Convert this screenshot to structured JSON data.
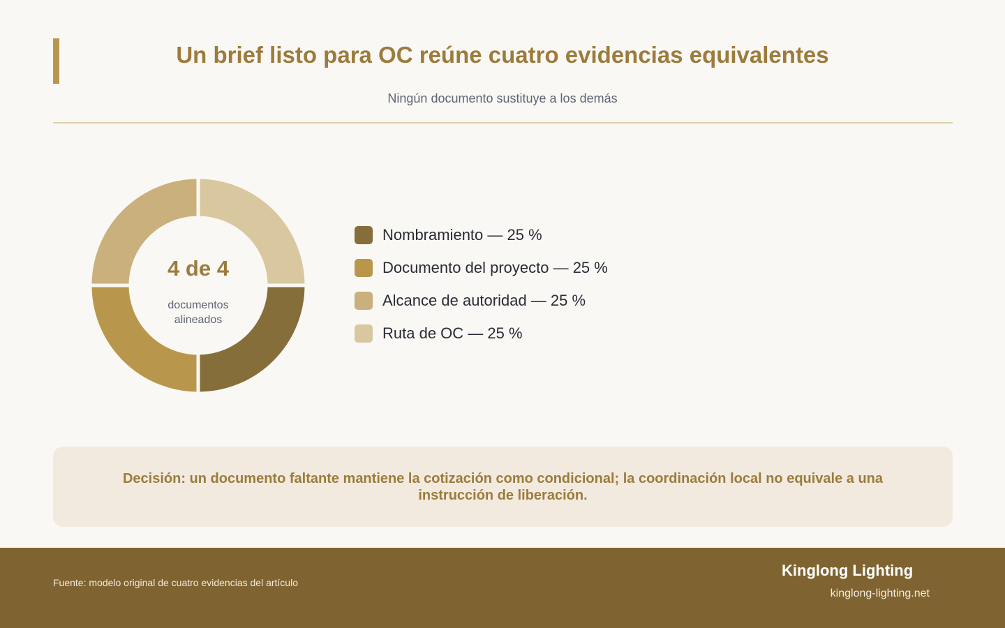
{
  "header": {
    "title": "Un brief listo para OC reúne cuatro evidencias equivalentes",
    "subtitle": "Ningún documento sustituye a los demás"
  },
  "chart_data": {
    "type": "pie",
    "variant": "donut",
    "categories": [
      "Nombramiento",
      "Documento del proyecto",
      "Alcance de autoridad",
      "Ruta de OC"
    ],
    "values": [
      25,
      25,
      25,
      25
    ],
    "legend_labels": [
      "Nombramiento — 25 %",
      "Documento del proyecto — 25 %",
      "Alcance de autoridad — 25 %",
      "Ruta de OC — 25 %"
    ],
    "colors": [
      "#866e3b",
      "#b8974c",
      "#c9b07c",
      "#d9c79f"
    ],
    "center_value": "4 de 4",
    "center_caption_line1": "documentos",
    "center_caption_line2": "alineados",
    "legend_position": "right"
  },
  "callout": {
    "text": "Decisión: un documento faltante mantiene la cotización como condicional; la coordinación local no equivale a una instrucción de liberación."
  },
  "footer": {
    "source": "Fuente: modelo original de cuatro evidencias del artículo",
    "brand": "Kinglong Lighting",
    "site": "kinglong-lighting.net"
  },
  "colors": {
    "accent": "#b8964c",
    "title": "#9c7b3c",
    "footer_bg": "#7f6431",
    "callout_bg": "#f2eadf",
    "page_bg": "#faf8f4"
  }
}
